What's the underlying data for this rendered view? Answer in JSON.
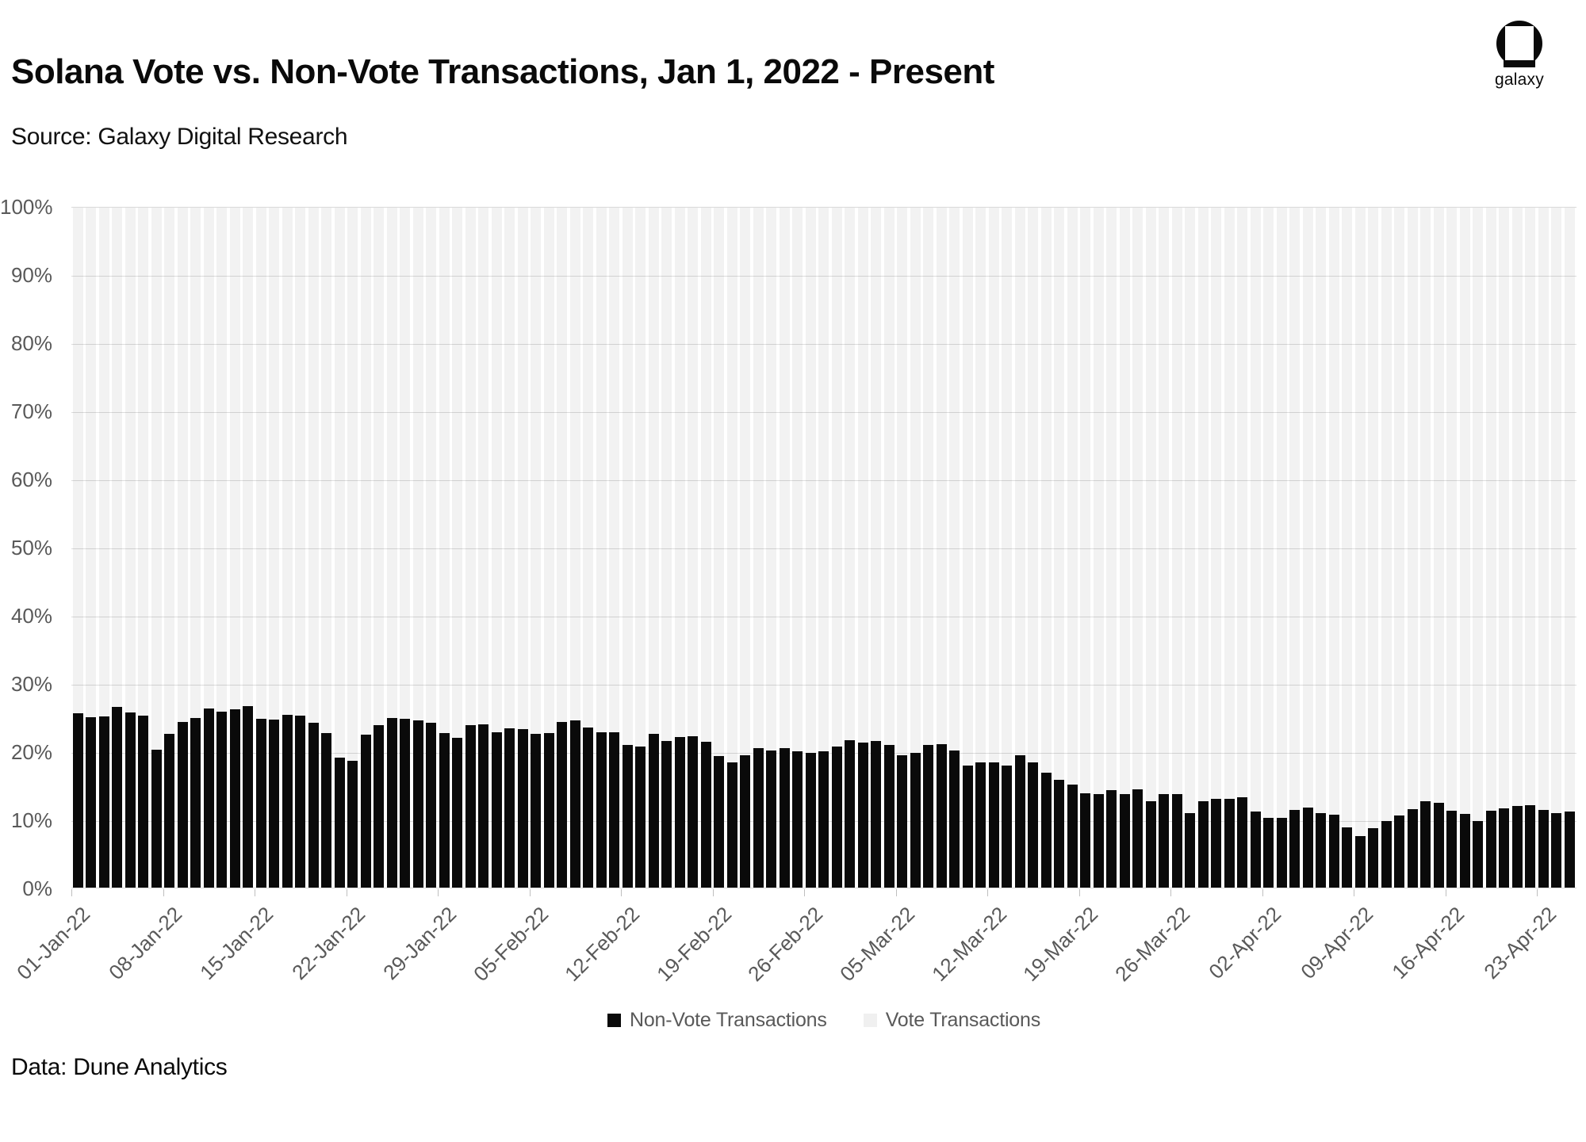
{
  "header": {
    "title": "Solana Vote vs. Non-Vote Transactions, Jan 1, 2022 - Present",
    "source": "Source: Galaxy Digital Research",
    "logo_text": "galaxy"
  },
  "legend": {
    "items": [
      {
        "label": "Non-Vote Transactions",
        "color": "#0a0a0a"
      },
      {
        "label": "Vote Transactions",
        "color": "#f0f0f0"
      }
    ]
  },
  "footer": {
    "text": "Data: Dune Analytics"
  },
  "colors": {
    "nonvote_bar": "#0a0a0a",
    "vote_bar": "#f2f2f2",
    "gridline": "#dcdcdc",
    "axis_line": "#d9d9d9",
    "tick_mark": "#bfbfbf",
    "axis_label": "#595959",
    "text": "#0a0a0a"
  },
  "chart_data": {
    "type": "bar",
    "stacked": true,
    "stack_total_percent": 100,
    "title": "Solana Vote vs. Non-Vote Transactions, Jan 1, 2022 - Present",
    "xlabel": "",
    "ylabel": "",
    "ylim": [
      0,
      100
    ],
    "grid": "horizontal-faint",
    "legend_position": "bottom",
    "y_ticks": [
      "0%",
      "10%",
      "20%",
      "30%",
      "40%",
      "50%",
      "60%",
      "70%",
      "80%",
      "90%",
      "100%"
    ],
    "x_tick_labels": [
      "01-Jan-22",
      "08-Jan-22",
      "15-Jan-22",
      "22-Jan-22",
      "29-Jan-22",
      "05-Feb-22",
      "12-Feb-22",
      "19-Feb-22",
      "26-Feb-22",
      "05-Mar-22",
      "12-Mar-22",
      "19-Mar-22",
      "26-Mar-22",
      "02-Apr-22",
      "09-Apr-22",
      "16-Apr-22",
      "23-Apr-22"
    ],
    "x_tick_every_n_bars": 7,
    "x": [
      "01-Jan-22",
      "02-Jan-22",
      "03-Jan-22",
      "04-Jan-22",
      "05-Jan-22",
      "06-Jan-22",
      "07-Jan-22",
      "08-Jan-22",
      "09-Jan-22",
      "10-Jan-22",
      "11-Jan-22",
      "12-Jan-22",
      "13-Jan-22",
      "14-Jan-22",
      "15-Jan-22",
      "16-Jan-22",
      "17-Jan-22",
      "18-Jan-22",
      "19-Jan-22",
      "20-Jan-22",
      "21-Jan-22",
      "22-Jan-22",
      "23-Jan-22",
      "24-Jan-22",
      "25-Jan-22",
      "26-Jan-22",
      "27-Jan-22",
      "28-Jan-22",
      "29-Jan-22",
      "30-Jan-22",
      "31-Jan-22",
      "01-Feb-22",
      "02-Feb-22",
      "03-Feb-22",
      "04-Feb-22",
      "05-Feb-22",
      "06-Feb-22",
      "07-Feb-22",
      "08-Feb-22",
      "09-Feb-22",
      "10-Feb-22",
      "11-Feb-22",
      "12-Feb-22",
      "13-Feb-22",
      "14-Feb-22",
      "15-Feb-22",
      "16-Feb-22",
      "17-Feb-22",
      "18-Feb-22",
      "19-Feb-22",
      "20-Feb-22",
      "21-Feb-22",
      "22-Feb-22",
      "23-Feb-22",
      "24-Feb-22",
      "25-Feb-22",
      "26-Feb-22",
      "27-Feb-22",
      "28-Feb-22",
      "01-Mar-22",
      "02-Mar-22",
      "03-Mar-22",
      "04-Mar-22",
      "05-Mar-22",
      "06-Mar-22",
      "07-Mar-22",
      "08-Mar-22",
      "09-Mar-22",
      "10-Mar-22",
      "11-Mar-22",
      "12-Mar-22",
      "13-Mar-22",
      "14-Mar-22",
      "15-Mar-22",
      "16-Mar-22",
      "17-Mar-22",
      "18-Mar-22",
      "19-Mar-22",
      "20-Mar-22",
      "21-Mar-22",
      "22-Mar-22",
      "23-Mar-22",
      "24-Mar-22",
      "25-Mar-22",
      "26-Mar-22",
      "27-Mar-22",
      "28-Mar-22",
      "29-Mar-22",
      "30-Mar-22",
      "31-Mar-22",
      "01-Apr-22",
      "02-Apr-22",
      "03-Apr-22",
      "04-Apr-22",
      "05-Apr-22",
      "06-Apr-22",
      "07-Apr-22",
      "08-Apr-22",
      "09-Apr-22",
      "10-Apr-22",
      "11-Apr-22",
      "12-Apr-22",
      "13-Apr-22",
      "14-Apr-22",
      "15-Apr-22",
      "16-Apr-22",
      "17-Apr-22",
      "18-Apr-22",
      "19-Apr-22",
      "20-Apr-22",
      "21-Apr-22",
      "22-Apr-22",
      "23-Apr-22",
      "24-Apr-22",
      "25-Apr-22"
    ],
    "series": [
      {
        "name": "Non-Vote Transactions",
        "unit": "%",
        "color": "#0a0a0a",
        "values": [
          25.6,
          25.1,
          25.2,
          26.6,
          25.7,
          25.3,
          20.3,
          22.6,
          24.4,
          24.9,
          26.3,
          25.9,
          26.2,
          26.7,
          24.8,
          24.7,
          25.4,
          25.3,
          24.3,
          22.7,
          19.1,
          18.7,
          22.5,
          23.9,
          24.9,
          24.8,
          24.6,
          24.2,
          22.7,
          22.0,
          23.9,
          24.0,
          22.8,
          23.4,
          23.3,
          22.6,
          22.7,
          24.4,
          24.6,
          23.6,
          22.8,
          22.9,
          21.0,
          20.8,
          22.6,
          21.6,
          22.2,
          22.3,
          21.5,
          19.3,
          18.4,
          19.5,
          20.5,
          20.2,
          20.5,
          20.0,
          19.8,
          20.0,
          20.7,
          21.7,
          21.3,
          21.6,
          21.0,
          19.5,
          19.8,
          21.0,
          21.1,
          20.2,
          17.9,
          18.4,
          18.4,
          18.0,
          19.5,
          18.4,
          16.9,
          15.9,
          15.2,
          13.9,
          13.8,
          14.3,
          13.8,
          14.5,
          12.7,
          13.8,
          13.8,
          10.9,
          12.7,
          13.0,
          13.1,
          13.3,
          11.2,
          10.3,
          10.2,
          11.4,
          11.8,
          11.0,
          10.7,
          8.9,
          7.6,
          8.7,
          9.8,
          10.6,
          11.5,
          12.7,
          12.5,
          11.3,
          10.8,
          9.8,
          11.3,
          11.6,
          12.0,
          12.1,
          11.4,
          10.9,
          11.2
        ]
      },
      {
        "name": "Vote Transactions",
        "unit": "%",
        "color": "#f2f2f2",
        "derived": "100 minus Non-Vote Transactions (bars stack to 100%)"
      }
    ]
  }
}
